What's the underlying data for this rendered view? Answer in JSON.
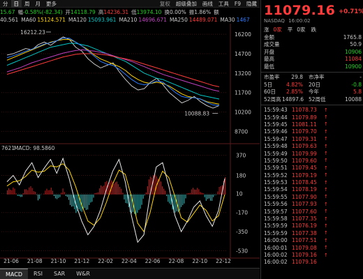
{
  "topbar": {
    "items": [
      {
        "label": "分",
        "active": false
      },
      {
        "label": "日",
        "active": true
      },
      {
        "label": "周",
        "active": false
      },
      {
        "label": "月",
        "active": false
      },
      {
        "label": "更多",
        "active": false
      }
    ],
    "right_items": [
      "复权",
      "超级叠加",
      "画线",
      "工具",
      "F9",
      "隐藏"
    ]
  },
  "info1": {
    "prefix": "15.67",
    "change_label": "幅",
    "change_value": "-0.58%(-82.34)",
    "open_label": "开",
    "open_value": "14118.79",
    "high_label": "高",
    "high_value": "14236.31",
    "low_label": "低",
    "low_value": "13974.10",
    "turnover_label": "换",
    "turnover_value": "0.00%",
    "amp_label": "振",
    "amp_value": "1.86%",
    "vol_label": "额",
    "vol_value": ""
  },
  "info2": {
    "ma_prefix": "40.561",
    "ma60_label": "MA60",
    "ma60_value": "15124.571",
    "ma120_label": "MA120",
    "ma120_value": "15093.961",
    "ma210_label": "MA210",
    "ma210_value": "14696.671",
    "ma250_label": "MA250",
    "ma250_value": "14489.071",
    "ma30_label": "MA30",
    "ma30_value": "1467"
  },
  "macd_label": {
    "prefix": "7621",
    "text": "MACD: 98.5860"
  },
  "chart_data": {
    "type": "line",
    "x_ticks": [
      "21-06",
      "21-08",
      "21-10",
      "21-12",
      "22-02",
      "22-04",
      "22-06",
      "22-08",
      "22-10",
      "22-12"
    ],
    "y_ticks_price": [
      "16200",
      "14700",
      "13200",
      "11700",
      "10200",
      "8700"
    ],
    "y_ticks_macd": [
      "370",
      "180",
      "10",
      "-170",
      "-350",
      "-530"
    ],
    "annotations": [
      {
        "text": "16212.23",
        "x": "21-11",
        "y": 16212.23
      },
      {
        "text": "10088.83",
        "x": "22-12",
        "y": 10088.83
      }
    ],
    "price_ylim": [
      8400,
      16800
    ],
    "macd_ylim": [
      -560,
      400
    ],
    "series": [
      {
        "name": "MA",
        "color": "#d9d9d9",
        "values": [
          14600,
          14700,
          14900,
          15100,
          15000,
          15400,
          15600,
          15350,
          15700,
          16000,
          15800,
          15200,
          14900,
          14300,
          13900,
          13600,
          13800,
          14000,
          13300,
          12700,
          12200,
          11900,
          12000,
          12500,
          12800,
          12300,
          11700,
          11300,
          10900,
          11100,
          11400,
          11000,
          10700,
          10500,
          10700
        ]
      },
      {
        "name": "MA60",
        "color": "#ffd400",
        "values": [
          14200,
          14400,
          14600,
          14800,
          15000,
          15200,
          15400,
          15600,
          15700,
          15800,
          15800,
          15600,
          15300,
          15000,
          14600,
          14300,
          14100,
          13900,
          13700,
          13400,
          13000,
          12700,
          12500,
          12400,
          12500,
          12400,
          12200,
          11900,
          11600,
          11400,
          11300,
          11200,
          11000,
          10900,
          10800
        ]
      },
      {
        "name": "MA120",
        "color": "#00c8c8",
        "values": [
          13800,
          14000,
          14200,
          14400,
          14600,
          14800,
          15000,
          15200,
          15300,
          15400,
          15500,
          15500,
          15400,
          15300,
          15100,
          14900,
          14700,
          14500,
          14300,
          14100,
          13800,
          13500,
          13200,
          13000,
          12800,
          12700,
          12500,
          12300,
          12100,
          11900,
          11700,
          11500,
          11400,
          11300,
          11200
        ]
      },
      {
        "name": "MA210",
        "color": "#c040c0",
        "values": [
          13300,
          13450,
          13600,
          13800,
          14000,
          14150,
          14300,
          14450,
          14600,
          14750,
          14850,
          14950,
          15000,
          14950,
          14900,
          14800,
          14700,
          14550,
          14400,
          14250,
          14100,
          13900,
          13700,
          13500,
          13300,
          13100,
          12950,
          12800,
          12650,
          12500,
          12350,
          12200,
          12050,
          11900,
          11800
        ]
      },
      {
        "name": "MA250",
        "color": "#ff3b3b",
        "values": [
          13100,
          13250,
          13400,
          13550,
          13700,
          13850,
          14000,
          14150,
          14300,
          14450,
          14550,
          14650,
          14700,
          14700,
          14700,
          14650,
          14600,
          14500,
          14400,
          14300,
          14200,
          14050,
          13900,
          13750,
          13600,
          13450,
          13300,
          13150,
          13000,
          12850,
          12700,
          12550,
          12400,
          12250,
          12150
        ]
      },
      {
        "name": "MA30",
        "color": "#2b7cff",
        "values": [
          14400,
          14550,
          14700,
          14900,
          15050,
          15250,
          15450,
          15550,
          15700,
          15900,
          15900,
          15600,
          15300,
          14900,
          14500,
          14100,
          13900,
          13800,
          13500,
          13100,
          12700,
          12400,
          12300,
          12400,
          12600,
          12500,
          12100,
          11700,
          11400,
          11300,
          11300,
          11200,
          10950,
          10750,
          10700
        ]
      }
    ],
    "macd_dif": [
      120,
      180,
      90,
      220,
      300,
      160,
      250,
      330,
      200,
      340,
      150,
      -80,
      -250,
      -380,
      -300,
      -150,
      50,
      220,
      330,
      120,
      -200,
      -450,
      -380,
      0,
      260,
      300,
      80,
      -200,
      -350,
      -250,
      -120,
      -60,
      -200,
      -300,
      -150,
      150
    ],
    "macd_dea": [
      80,
      120,
      130,
      170,
      230,
      210,
      220,
      270,
      260,
      290,
      230,
      80,
      -100,
      -250,
      -290,
      -220,
      -70,
      100,
      230,
      190,
      -20,
      -270,
      -350,
      -170,
      80,
      220,
      160,
      -20,
      -220,
      -260,
      -180,
      -100,
      -150,
      -250,
      -200,
      0
    ],
    "macd_hist": [
      40,
      60,
      -40,
      50,
      70,
      -50,
      30,
      60,
      -60,
      50,
      -80,
      -160,
      -150,
      -130,
      -10,
      70,
      120,
      120,
      100,
      -70,
      -180,
      -180,
      -30,
      170,
      180,
      80,
      -80,
      -180,
      -130,
      10,
      60,
      40,
      -50,
      -50,
      50,
      150
    ]
  },
  "bottombar": [
    "MACD",
    "RSI",
    "SAR",
    "W&R"
  ],
  "quote": {
    "last_price": "11079.16",
    "change_pct": "+0.71%",
    "change_extra": "(+",
    "exchange": "NASDAQ",
    "time": "16:00:02",
    "tabs": [
      "涨",
      "0家",
      "平",
      "0家",
      "跌"
    ],
    "rows": [
      {
        "label": "金额",
        "value": "1765.8",
        "color": ""
      },
      {
        "label": "成交量",
        "value": "50.9",
        "color": ""
      },
      {
        "label": "开盘",
        "value": "10906",
        "color": "green"
      },
      {
        "label": "最高",
        "value": "11084",
        "color": "red"
      },
      {
        "label": "最低",
        "value": "10900",
        "color": "green"
      }
    ],
    "stats": [
      {
        "l1": "市盈率",
        "v1": "29.8",
        "c1": "",
        "l2": "市净率",
        "v2": "-",
        "c2": ""
      },
      {
        "l1": "5日",
        "v1": "4.82%",
        "c1": "red",
        "l2": "20日",
        "v2": "-0.8",
        "c2": "green"
      },
      {
        "l1": "60日",
        "v1": "2.85%",
        "c1": "red",
        "l2": "今年",
        "v2": "5.8",
        "c2": "red"
      },
      {
        "l1": "52周高",
        "v1": "14897.6",
        "c1": "",
        "l2": "52周低",
        "v2": "10088",
        "c2": ""
      }
    ],
    "ticks": [
      {
        "time": "15:59:43",
        "price": "11078.73",
        "arrow": "↑"
      },
      {
        "time": "15:59:44",
        "price": "11079.89",
        "arrow": "↑"
      },
      {
        "time": "15:59:45",
        "price": "11081.11",
        "arrow": "↑"
      },
      {
        "time": "15:59:46",
        "price": "11079.70",
        "arrow": "↑"
      },
      {
        "time": "15:59:47",
        "price": "11079.31",
        "arrow": "↑"
      },
      {
        "time": "15:59:48",
        "price": "11079.63",
        "arrow": "↑"
      },
      {
        "time": "15:59:49",
        "price": "11079.99",
        "arrow": "↑"
      },
      {
        "time": "15:59:50",
        "price": "11079.60",
        "arrow": "↑"
      },
      {
        "time": "15:59:51",
        "price": "11079.45",
        "arrow": "↑"
      },
      {
        "time": "15:59:52",
        "price": "11079.19",
        "arrow": "↑"
      },
      {
        "time": "15:59:53",
        "price": "11078.45",
        "arrow": "↑"
      },
      {
        "time": "15:59:54",
        "price": "11078.19",
        "arrow": "↑"
      },
      {
        "time": "15:59:55",
        "price": "11077.90",
        "arrow": "↑"
      },
      {
        "time": "15:59:56",
        "price": "11077.93",
        "arrow": "↑"
      },
      {
        "time": "15:59:57",
        "price": "11077.60",
        "arrow": "↑"
      },
      {
        "time": "15:59:58",
        "price": "11077.35",
        "arrow": "↑"
      },
      {
        "time": "15:59:59",
        "price": "11076.19",
        "arrow": "↑"
      },
      {
        "time": "15:59:59",
        "price": "11077.38",
        "arrow": "↑"
      },
      {
        "time": "16:00:00",
        "price": "11077.51",
        "arrow": "↑"
      },
      {
        "time": "16:00:01",
        "price": "11079.08",
        "arrow": "↑"
      },
      {
        "time": "16:00:02",
        "price": "11079.16",
        "arrow": "↑"
      },
      {
        "time": "16:00:02",
        "price": "11079.16",
        "arrow": ""
      }
    ]
  },
  "colors": {
    "up": "#ff3b3b",
    "down": "#1fd21f",
    "macd_up": "#c81e1e",
    "macd_down": "#2fbcbc",
    "grid": "#3a1010",
    "axis_text": "#c8c8c8"
  }
}
